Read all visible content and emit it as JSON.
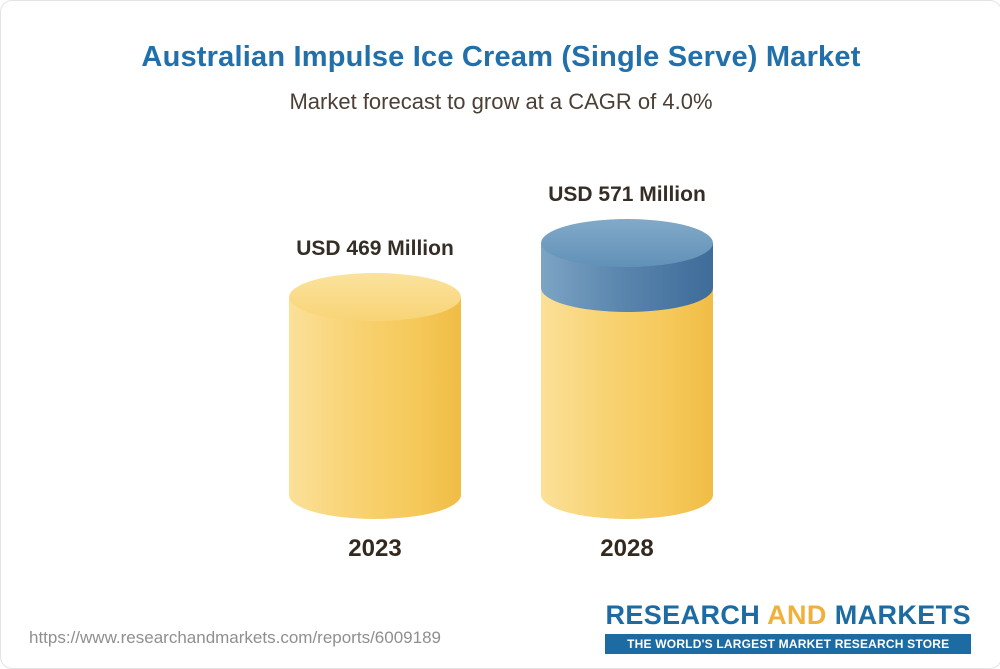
{
  "page": {
    "title": "Australian Impulse Ice Cream (Single Serve) Market",
    "subtitle": "Market forecast to grow at a CAGR of 4.0%"
  },
  "chart_data": {
    "type": "bar",
    "variant": "3d-cylinder",
    "title": "Australian Impulse Ice Cream (Single Serve) Market",
    "subtitle": "Market forecast to grow at a CAGR of 4.0%",
    "unit": "USD Million",
    "cagr_percent": 4.0,
    "categories": [
      "2023",
      "2028"
    ],
    "values": [
      469,
      571
    ],
    "ylim": [
      0,
      571
    ],
    "grid": false,
    "legend": false,
    "bars": [
      {
        "category": "2023",
        "total": 469,
        "label": "USD 469 Million",
        "segments": [
          {
            "color": "base",
            "value": 469
          }
        ]
      },
      {
        "category": "2028",
        "total": 571,
        "label": "USD 571 Million",
        "segments": [
          {
            "color": "base",
            "value": 469
          },
          {
            "color": "growth",
            "value": 102
          }
        ]
      }
    ],
    "colors": {
      "base_segment": "#f7cf66",
      "growth_segment": "#55809f",
      "title_text": "#2170ac",
      "subtitle_text": "#4c4036",
      "label_text": "#352e26"
    }
  },
  "footer": {
    "url": "https://www.researchandmarkets.com/reports/6009189",
    "logo": {
      "word1": "RESEARCH",
      "word2": "AND",
      "word3": "MARKETS",
      "tagline": "THE WORLD'S LARGEST MARKET RESEARCH STORE",
      "brand_blue": "#1d6ba3",
      "brand_gold": "#efb13b"
    }
  }
}
